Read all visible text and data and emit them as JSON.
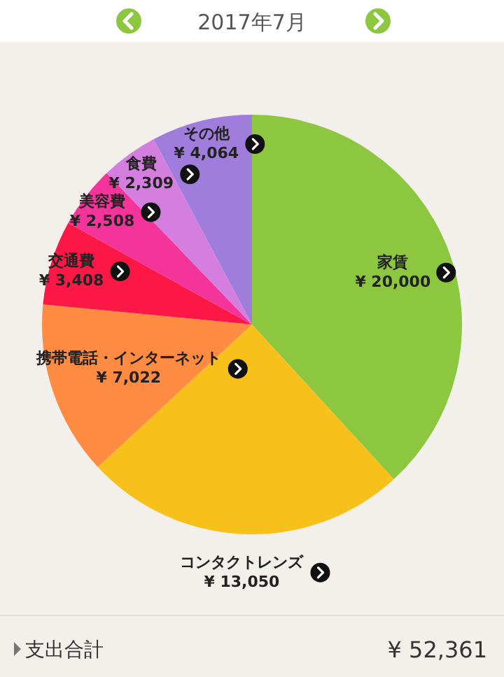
{
  "chart_data": {
    "type": "pie",
    "title": "2017年7月",
    "categories": [
      "家賃",
      "コンタクトレンズ",
      "携帯電話・インターネット",
      "交通費",
      "美容費",
      "食費",
      "その他"
    ],
    "values": [
      20000,
      13050,
      7022,
      3408,
      2508,
      2309,
      4064
    ],
    "colors": [
      "#8dc63f",
      "#f8c01a",
      "#fd8b42",
      "#fc1846",
      "#f5349b",
      "#d47fe0",
      "#a07cdc"
    ],
    "value_labels": [
      "¥ 20,000",
      "¥ 13,050",
      "¥ 7,022",
      "¥ 3,408",
      "¥ 2,508",
      "¥ 2,309",
      "¥ 4,064"
    ],
    "annotations": [
      "支出合計",
      "¥ 52,361"
    ]
  }
}
